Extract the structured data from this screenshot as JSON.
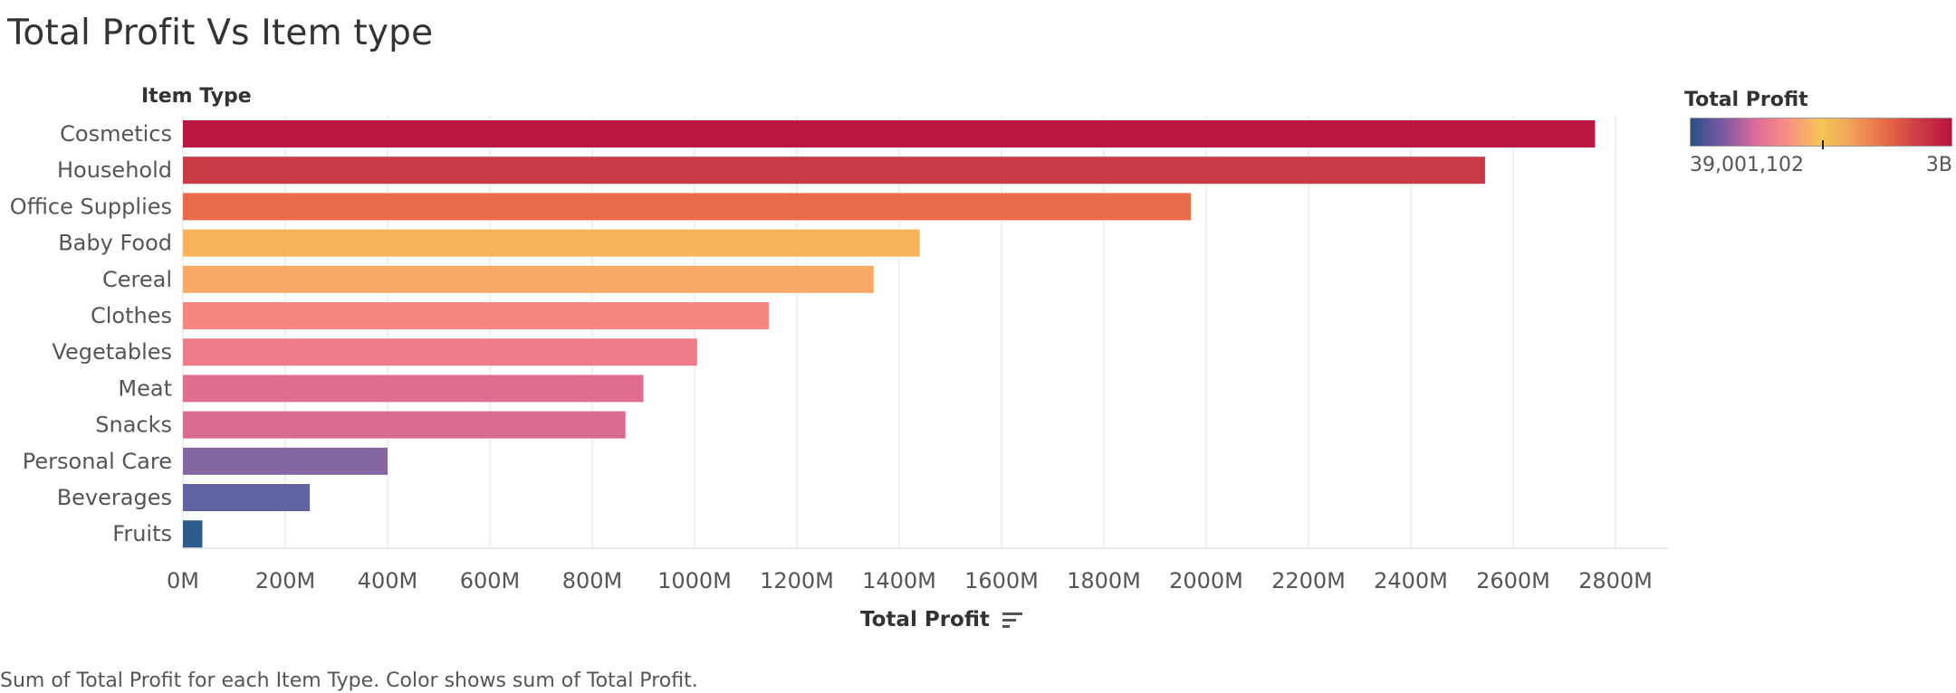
{
  "title": "Total Profit Vs Item type",
  "caption": "Sum of Total Profit for each Item Type.  Color shows sum of Total Profit.",
  "legend": {
    "title": "Total Profit",
    "min_label": "39,001,102",
    "max_label": "3B",
    "gradient": [
      "#2a5189",
      "#7b5aa2",
      "#dd6b9a",
      "#f79180",
      "#f5c657",
      "#f09d58",
      "#e66a45",
      "#cc3a46",
      "#b9143f"
    ]
  },
  "chart_data": {
    "type": "bar",
    "orientation": "horizontal",
    "title": "Total Profit Vs Item type",
    "row_header": "Item Type",
    "xlabel": "Total Profit",
    "categories": [
      "Cosmetics",
      "Household",
      "Office Supplies",
      "Baby Food",
      "Cereal",
      "Clothes",
      "Vegetables",
      "Meat",
      "Snacks",
      "Personal Care",
      "Beverages",
      "Fruits"
    ],
    "values": [
      2760,
      2545,
      1970,
      1440,
      1350,
      1145,
      1005,
      900,
      865,
      400,
      248,
      38
    ],
    "value_units": "M",
    "colors": [
      "#b9173f",
      "#c83a44",
      "#e96b4a",
      "#f6b359",
      "#f9a866",
      "#f78680",
      "#ee7b88",
      "#df6e91",
      "#d96b93",
      "#8467a2",
      "#5f64a0",
      "#2d5b8c"
    ],
    "xlim": [
      0,
      2900
    ],
    "xticks": [
      0,
      200,
      400,
      600,
      800,
      1000,
      1200,
      1400,
      1600,
      1800,
      2000,
      2200,
      2400,
      2600,
      2800
    ],
    "xtick_labels": [
      "0M",
      "200M",
      "400M",
      "600M",
      "800M",
      "1000M",
      "1200M",
      "1400M",
      "1600M",
      "1800M",
      "2000M",
      "2200M",
      "2400M",
      "2600M",
      "2800M"
    ],
    "grid": true,
    "legend_placement": "top-right"
  }
}
